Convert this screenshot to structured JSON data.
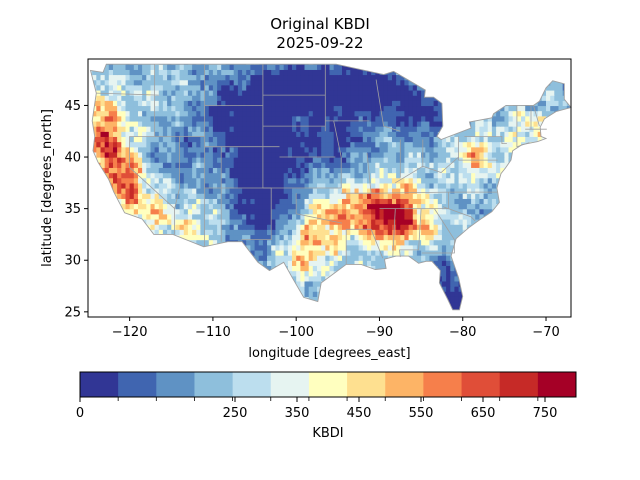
{
  "figure": {
    "title_line1": "Original KBDI",
    "title_line2": "2025-09-22"
  },
  "map": {
    "xlabel": "longitude [degrees_east]",
    "ylabel": "latitude [degrees_north]",
    "extent_lon": [
      -125,
      -67
    ],
    "extent_lat": [
      24.5,
      49.5
    ],
    "x_ticks": [
      -120,
      -110,
      -100,
      -90,
      -80,
      -70
    ],
    "x_tick_labels": [
      "−120",
      "−110",
      "−100",
      "−90",
      "−80",
      "−70"
    ],
    "y_ticks": [
      25,
      30,
      35,
      40,
      45
    ],
    "y_tick_labels": [
      "25",
      "30",
      "35",
      "40",
      "45"
    ],
    "state_border_color": "#a0a0a0"
  },
  "colorbar": {
    "label": "KBDI",
    "range": [
      0,
      800
    ],
    "tick_values": [
      0,
      250,
      350,
      450,
      550,
      650,
      750
    ],
    "tick_labels": [
      "0",
      "250",
      "350",
      "450",
      "550",
      "650",
      "750"
    ],
    "bin_edges": [
      0,
      100,
      200,
      300,
      400,
      450,
      500,
      550,
      600,
      650,
      700,
      750,
      800
    ],
    "colors": [
      "#313695",
      "#4065b0",
      "#5f92c4",
      "#8ebfdc",
      "#bcdeee",
      "#e6f4f1",
      "#ffffbf",
      "#fee090",
      "#fdb466",
      "#f67f4b",
      "#e04e38",
      "#c62a27",
      "#a50026"
    ]
  }
}
